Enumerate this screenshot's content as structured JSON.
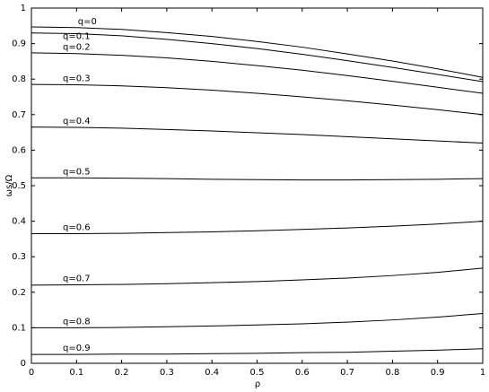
{
  "chart_data": {
    "type": "line",
    "xlabel": "ρ",
    "ylabel": "ωs/Ω",
    "x": [
      0,
      0.1,
      0.2,
      0.3,
      0.4,
      0.5,
      0.6,
      0.7,
      0.8,
      0.9,
      1
    ],
    "xlim": [
      0,
      1
    ],
    "ylim": [
      0,
      1
    ],
    "xticks": [
      0,
      0.1,
      0.2,
      0.3,
      0.4,
      0.5,
      0.6,
      0.7,
      0.8,
      0.9,
      1
    ],
    "yticks": [
      0,
      0.1,
      0.2,
      0.3,
      0.4,
      0.5,
      0.6,
      0.7,
      0.8,
      0.9,
      1
    ],
    "grid": false,
    "series": [
      {
        "name": "q=0",
        "color": "#000000",
        "values": [
          0.947,
          0.945,
          0.94,
          0.931,
          0.92,
          0.906,
          0.89,
          0.871,
          0.851,
          0.829,
          0.805
        ]
      },
      {
        "name": "q=0.1",
        "color": "#000000",
        "values": [
          0.93,
          0.928,
          0.922,
          0.912,
          0.9,
          0.886,
          0.87,
          0.852,
          0.833,
          0.813,
          0.793
        ]
      },
      {
        "name": "q=0.2",
        "color": "#000000",
        "values": [
          0.874,
          0.872,
          0.867,
          0.86,
          0.85,
          0.838,
          0.825,
          0.81,
          0.794,
          0.777,
          0.76
        ]
      },
      {
        "name": "q=0.3",
        "color": "#000000",
        "values": [
          0.785,
          0.784,
          0.781,
          0.776,
          0.769,
          0.76,
          0.75,
          0.739,
          0.727,
          0.714,
          0.7
        ]
      },
      {
        "name": "q=0.4",
        "color": "#000000",
        "values": [
          0.665,
          0.664,
          0.662,
          0.658,
          0.654,
          0.649,
          0.644,
          0.638,
          0.632,
          0.626,
          0.62
        ]
      },
      {
        "name": "q=0.5",
        "color": "#000000",
        "values": [
          0.522,
          0.522,
          0.521,
          0.52,
          0.518,
          0.517,
          0.516,
          0.516,
          0.517,
          0.518,
          0.52
        ]
      },
      {
        "name": "q=0.6",
        "color": "#000000",
        "values": [
          0.365,
          0.365,
          0.366,
          0.368,
          0.37,
          0.373,
          0.377,
          0.381,
          0.386,
          0.392,
          0.4
        ]
      },
      {
        "name": "q=0.7",
        "color": "#000000",
        "values": [
          0.22,
          0.221,
          0.222,
          0.224,
          0.227,
          0.23,
          0.235,
          0.24,
          0.247,
          0.256,
          0.268
        ]
      },
      {
        "name": "q=0.8",
        "color": "#000000",
        "values": [
          0.1,
          0.1,
          0.101,
          0.103,
          0.105,
          0.108,
          0.111,
          0.116,
          0.122,
          0.13,
          0.14
        ]
      },
      {
        "name": "q=0.9",
        "color": "#000000",
        "values": [
          0.025,
          0.025,
          0.026,
          0.026,
          0.027,
          0.028,
          0.03,
          0.031,
          0.034,
          0.037,
          0.041
        ]
      }
    ]
  }
}
